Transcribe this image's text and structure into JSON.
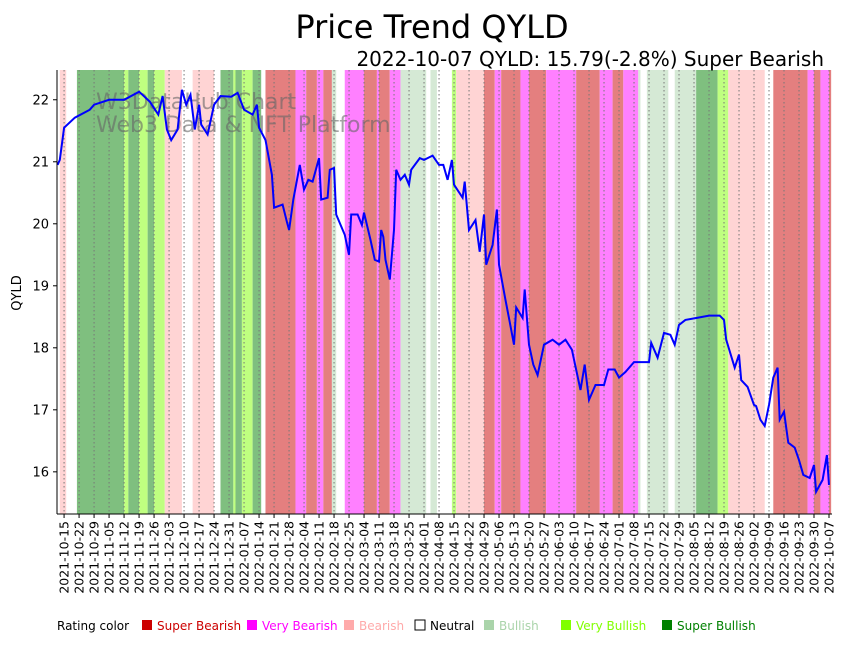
{
  "chart_data": {
    "type": "line",
    "title": "Price Trend QYLD",
    "subtitle": "2022-10-07 QYLD: 15.79(-2.8%) Super Bearish",
    "watermark": [
      "W3DataHub Chart",
      "Web3 Data & NFT Platform"
    ],
    "xlabel": "",
    "ylabel": "QYLD",
    "x_unit": "days since 2021-10-15",
    "xlim": [
      -3.3,
      358.4
    ],
    "ylim": [
      15.32,
      22.48
    ],
    "yticks": [
      16,
      17,
      18,
      19,
      20,
      21,
      22
    ],
    "xtick_days_step": 7,
    "xtick_labels": [
      "2021-10-15",
      "2021-10-22",
      "2021-10-29",
      "2021-11-05",
      "2021-11-12",
      "2021-11-19",
      "2021-11-26",
      "2021-12-03",
      "2021-12-10",
      "2021-12-17",
      "2021-12-24",
      "2021-12-31",
      "2022-01-07",
      "2022-01-14",
      "2022-01-21",
      "2022-01-28",
      "2022-02-04",
      "2022-02-11",
      "2022-02-18",
      "2022-02-25",
      "2022-03-04",
      "2022-03-11",
      "2022-03-18",
      "2022-03-25",
      "2022-04-01",
      "2022-04-08",
      "2022-04-15",
      "2022-04-22",
      "2022-04-29",
      "2022-05-06",
      "2022-05-13",
      "2022-05-20",
      "2022-05-27",
      "2022-06-03",
      "2022-06-10",
      "2022-06-17",
      "2022-06-24",
      "2022-07-01",
      "2022-07-08",
      "2022-07-15",
      "2022-07-22",
      "2022-07-29",
      "2022-08-05",
      "2022-08-12",
      "2022-08-19",
      "2022-08-26",
      "2022-09-02",
      "2022-09-09",
      "2022-09-16",
      "2022-09-23",
      "2022-09-30",
      "2022-10-07"
    ],
    "series": [
      {
        "name": "QYLD",
        "color": "#0000ff",
        "points": [
          [
            -3,
            20.95
          ],
          [
            -2,
            21.03
          ],
          [
            0,
            21.55
          ],
          [
            5,
            21.71
          ],
          [
            12,
            21.84
          ],
          [
            14,
            21.92
          ],
          [
            21,
            22.0
          ],
          [
            28,
            22.0
          ],
          [
            35,
            22.13
          ],
          [
            40,
            21.97
          ],
          [
            44,
            21.76
          ],
          [
            46,
            22.06
          ],
          [
            48,
            21.52
          ],
          [
            50,
            21.35
          ],
          [
            53,
            21.52
          ],
          [
            55,
            22.16
          ],
          [
            57,
            21.92
          ],
          [
            59,
            22.08
          ],
          [
            61,
            21.52
          ],
          [
            63,
            21.92
          ],
          [
            64,
            21.6
          ],
          [
            67,
            21.44
          ],
          [
            70,
            21.92
          ],
          [
            73,
            22.06
          ],
          [
            78,
            22.05
          ],
          [
            81,
            22.11
          ],
          [
            84,
            21.84
          ],
          [
            88,
            21.76
          ],
          [
            90,
            21.92
          ],
          [
            91,
            21.55
          ],
          [
            94,
            21.35
          ],
          [
            97,
            20.79
          ],
          [
            98,
            20.26
          ],
          [
            102,
            20.31
          ],
          [
            104,
            20.03
          ],
          [
            105,
            19.9
          ],
          [
            107,
            20.39
          ],
          [
            110,
            20.95
          ],
          [
            112,
            20.55
          ],
          [
            114,
            20.71
          ],
          [
            116,
            20.68
          ],
          [
            119,
            21.06
          ],
          [
            120,
            20.39
          ],
          [
            123,
            20.42
          ],
          [
            124,
            20.87
          ],
          [
            126,
            20.9
          ],
          [
            127,
            20.15
          ],
          [
            131,
            19.82
          ],
          [
            133,
            19.5
          ],
          [
            134,
            20.15
          ],
          [
            137,
            20.15
          ],
          [
            139,
            19.98
          ],
          [
            140,
            20.18
          ],
          [
            143,
            19.74
          ],
          [
            145,
            19.42
          ],
          [
            147,
            19.39
          ],
          [
            148,
            19.9
          ],
          [
            149,
            19.79
          ],
          [
            150,
            19.42
          ],
          [
            152,
            19.1
          ],
          [
            154,
            19.9
          ],
          [
            155,
            20.87
          ],
          [
            157,
            20.71
          ],
          [
            159,
            20.79
          ],
          [
            161,
            20.63
          ],
          [
            162,
            20.87
          ],
          [
            166,
            21.06
          ],
          [
            168,
            21.03
          ],
          [
            172,
            21.1
          ],
          [
            175,
            20.95
          ],
          [
            177,
            20.95
          ],
          [
            179,
            20.71
          ],
          [
            181,
            21.03
          ],
          [
            182,
            20.63
          ],
          [
            186,
            20.42
          ],
          [
            187,
            20.68
          ],
          [
            189,
            19.9
          ],
          [
            192,
            20.06
          ],
          [
            194,
            19.55
          ],
          [
            196,
            20.15
          ],
          [
            197,
            19.34
          ],
          [
            200,
            19.66
          ],
          [
            202,
            20.23
          ],
          [
            203,
            19.34
          ],
          [
            206,
            18.77
          ],
          [
            208,
            18.42
          ],
          [
            210,
            18.05
          ],
          [
            211,
            18.65
          ],
          [
            214,
            18.48
          ],
          [
            215,
            18.94
          ],
          [
            217,
            18.05
          ],
          [
            219,
            17.73
          ],
          [
            221,
            17.56
          ],
          [
            224,
            18.05
          ],
          [
            228,
            18.13
          ],
          [
            231,
            18.05
          ],
          [
            234,
            18.13
          ],
          [
            237,
            17.97
          ],
          [
            241,
            17.32
          ],
          [
            243,
            17.73
          ],
          [
            245,
            17.16
          ],
          [
            248,
            17.4
          ],
          [
            252,
            17.4
          ],
          [
            254,
            17.65
          ],
          [
            257,
            17.65
          ],
          [
            259,
            17.52
          ],
          [
            262,
            17.61
          ],
          [
            266,
            17.77
          ],
          [
            273,
            17.77
          ],
          [
            274,
            18.08
          ],
          [
            277,
            17.84
          ],
          [
            280,
            18.24
          ],
          [
            283,
            18.21
          ],
          [
            285,
            18.05
          ],
          [
            287,
            18.37
          ],
          [
            290,
            18.45
          ],
          [
            295,
            18.48
          ],
          [
            301,
            18.52
          ],
          [
            306,
            18.52
          ],
          [
            308,
            18.45
          ],
          [
            309,
            18.13
          ],
          [
            313,
            17.68
          ],
          [
            315,
            17.89
          ],
          [
            316,
            17.48
          ],
          [
            319,
            17.37
          ],
          [
            322,
            17.08
          ],
          [
            323,
            17.06
          ],
          [
            325,
            16.84
          ],
          [
            327,
            16.74
          ],
          [
            329,
            17.08
          ],
          [
            331,
            17.52
          ],
          [
            333,
            17.68
          ],
          [
            334,
            16.84
          ],
          [
            336,
            16.97
          ],
          [
            338,
            16.47
          ],
          [
            341,
            16.39
          ],
          [
            343,
            16.19
          ],
          [
            345,
            15.95
          ],
          [
            348,
            15.9
          ],
          [
            350,
            16.11
          ],
          [
            351,
            15.68
          ],
          [
            354,
            15.87
          ],
          [
            356,
            16.27
          ],
          [
            357,
            15.79
          ]
        ]
      }
    ],
    "rating_bands": [
      [
        -2,
        1,
        "Bearish"
      ],
      [
        6,
        28,
        "Super Bullish"
      ],
      [
        28,
        30,
        "Very Bullish"
      ],
      [
        30,
        35,
        "Super Bullish"
      ],
      [
        35,
        39,
        "Very Bullish"
      ],
      [
        39,
        42,
        "Super Bullish"
      ],
      [
        42,
        47,
        "Very Bullish"
      ],
      [
        47,
        55,
        "Bearish"
      ],
      [
        60,
        70,
        "Bearish"
      ],
      [
        73,
        79,
        "Super Bullish"
      ],
      [
        79,
        80,
        "Very Bullish"
      ],
      [
        80,
        83,
        "Super Bullish"
      ],
      [
        83,
        88,
        "Very Bullish"
      ],
      [
        88,
        92,
        "Super Bullish"
      ],
      [
        94,
        108,
        "Super Bearish"
      ],
      [
        108,
        113,
        "Very Bearish"
      ],
      [
        113,
        118,
        "Super Bearish"
      ],
      [
        118,
        121,
        "Very Bearish"
      ],
      [
        121,
        125,
        "Super Bearish"
      ],
      [
        125,
        127,
        "Bullish"
      ],
      [
        131,
        140,
        "Very Bearish"
      ],
      [
        140,
        146,
        "Super Bearish"
      ],
      [
        146,
        147,
        "Very Bearish"
      ],
      [
        147,
        152,
        "Super Bearish"
      ],
      [
        152,
        157,
        "Very Bearish"
      ],
      [
        157,
        169,
        "Bullish"
      ],
      [
        171,
        174,
        "Bullish"
      ],
      [
        181,
        183,
        "Very Bullish"
      ],
      [
        183,
        196,
        "Bearish"
      ],
      [
        196,
        201,
        "Super Bearish"
      ],
      [
        201,
        204,
        "Very Bearish"
      ],
      [
        204,
        213,
        "Super Bearish"
      ],
      [
        213,
        217,
        "Very Bearish"
      ],
      [
        217,
        225,
        "Super Bearish"
      ],
      [
        225,
        239,
        "Very Bearish"
      ],
      [
        239,
        250,
        "Super Bearish"
      ],
      [
        250,
        256,
        "Very Bearish"
      ],
      [
        256,
        261,
        "Super Bearish"
      ],
      [
        261,
        268,
        "Very Bearish"
      ],
      [
        268,
        269,
        "Bullish"
      ],
      [
        272,
        282,
        "Bullish"
      ],
      [
        285,
        295,
        "Bullish"
      ],
      [
        295,
        305,
        "Super Bullish"
      ],
      [
        305,
        310,
        "Very Bullish"
      ],
      [
        310,
        327,
        "Bearish"
      ],
      [
        331,
        347,
        "Super Bearish"
      ],
      [
        347,
        350,
        "Very Bearish"
      ],
      [
        350,
        353,
        "Super Bearish"
      ],
      [
        353,
        357,
        "Very Bearish"
      ],
      [
        357,
        358,
        "Super Bearish"
      ]
    ],
    "band_colors": {
      "Super Bearish": "#e47f7f",
      "Very Bearish": "#ff80ff",
      "Bearish": "#ffd4d4",
      "Neutral": "#ffffff",
      "Bullish": "#d5e9d5",
      "Very Bullish": "#bfff80",
      "Super Bullish": "#7fbf7f"
    },
    "legend": {
      "title": "Rating color",
      "placement": "bottom",
      "items": [
        {
          "label": "Super Bearish",
          "color": "#cc0000"
        },
        {
          "label": "Very Bearish",
          "color": "#ff00ff"
        },
        {
          "label": "Bearish",
          "color": "#ffaaaa"
        },
        {
          "label": "Neutral",
          "color": "#ffffff"
        },
        {
          "label": "Bullish",
          "color": "#aad4aa"
        },
        {
          "label": "Very Bullish",
          "color": "#80ff00"
        },
        {
          "label": "Super Bullish",
          "color": "#008000"
        }
      ]
    },
    "grid": "vertical dotted at x ticks"
  }
}
